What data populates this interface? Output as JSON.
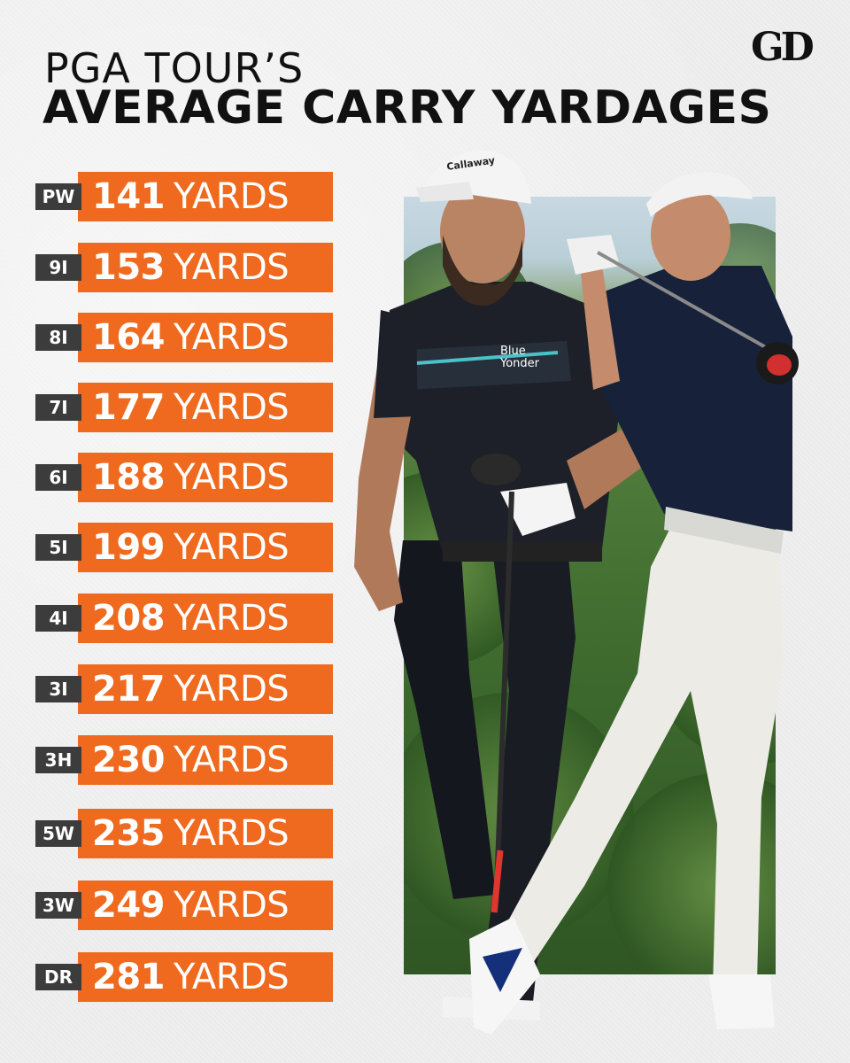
{
  "header": {
    "title_line1": "PGA TOUR’S",
    "title_line2": "AVERAGE CARRY YARDAGES",
    "logo": "GD"
  },
  "rows": [
    {
      "club": "PW",
      "yards": "141",
      "unit": "YARDS"
    },
    {
      "club": "9I",
      "yards": "153",
      "unit": "YARDS"
    },
    {
      "club": "8I",
      "yards": "164",
      "unit": "YARDS"
    },
    {
      "club": "7I",
      "yards": "177",
      "unit": "YARDS"
    },
    {
      "club": "6I",
      "yards": "188",
      "unit": "YARDS"
    },
    {
      "club": "5I",
      "yards": "199",
      "unit": "YARDS"
    },
    {
      "club": "4I",
      "yards": "208",
      "unit": "YARDS"
    },
    {
      "club": "3I",
      "yards": "217",
      "unit": "YARDS"
    },
    {
      "club": "3H",
      "yards": "230",
      "unit": "YARDS"
    },
    {
      "club": "5W",
      "yards": "235",
      "unit": "YARDS"
    },
    {
      "club": "3W",
      "yards": "249",
      "unit": "YARDS"
    },
    {
      "club": "DR",
      "yards": "281",
      "unit": "YARDS"
    }
  ],
  "photo": {
    "shirt_text_line1": "Blue",
    "shirt_text_line2": "Yonder",
    "cap_text": "Callaway"
  },
  "colors": {
    "accent_orange": "#ef6a1f",
    "club_tag": "#3c3c3c",
    "title": "#111111"
  }
}
